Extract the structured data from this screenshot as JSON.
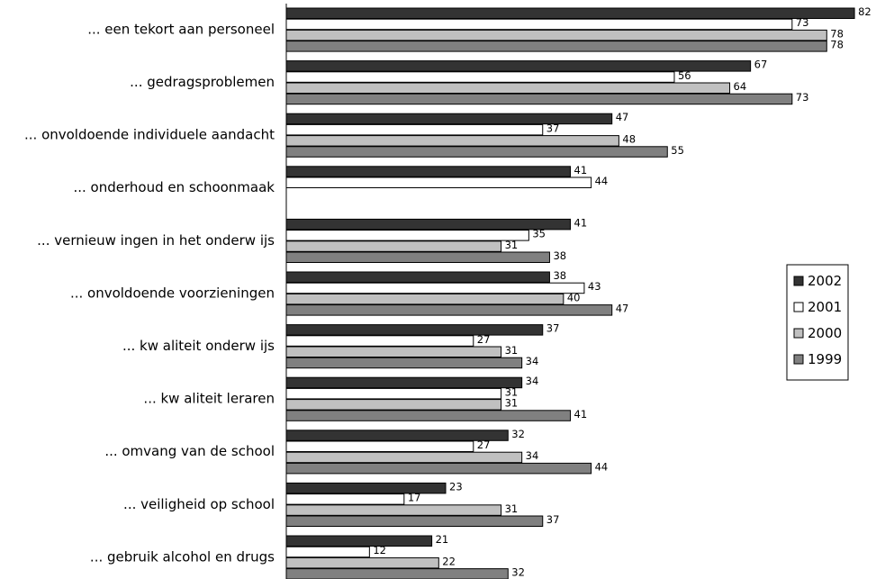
{
  "chart_data": {
    "type": "bar",
    "orientation": "horizontal",
    "categories": [
      "... een tekort aan personeel",
      "... gedragsproblemen",
      "... onvoldoende individuele aandacht",
      "... onderhoud en schoonmaak",
      "... vernieuw ingen in het onderw ijs",
      "... onvoldoende voorzieningen",
      "... kw aliteit onderw ijs",
      "... kw aliteit leraren",
      "... omvang van de school",
      "... veiligheid op school",
      "... gebruik alcohol en drugs"
    ],
    "series": [
      {
        "name": "2002",
        "color": "#333333",
        "values": [
          82,
          67,
          47,
          41,
          41,
          38,
          37,
          34,
          32,
          23,
          21
        ]
      },
      {
        "name": "2001",
        "color": "#ffffff",
        "values": [
          73,
          56,
          37,
          44,
          35,
          43,
          27,
          31,
          27,
          17,
          12
        ]
      },
      {
        "name": "2000",
        "color": "#c0c0c0",
        "values": [
          78,
          64,
          48,
          null,
          31,
          40,
          31,
          31,
          34,
          31,
          22
        ]
      },
      {
        "name": "1999",
        "color": "#808080",
        "values": [
          78,
          73,
          55,
          null,
          38,
          47,
          34,
          41,
          44,
          37,
          32
        ]
      }
    ],
    "xlim": [
      0,
      82
    ],
    "grid": false,
    "legend_position": "right"
  }
}
